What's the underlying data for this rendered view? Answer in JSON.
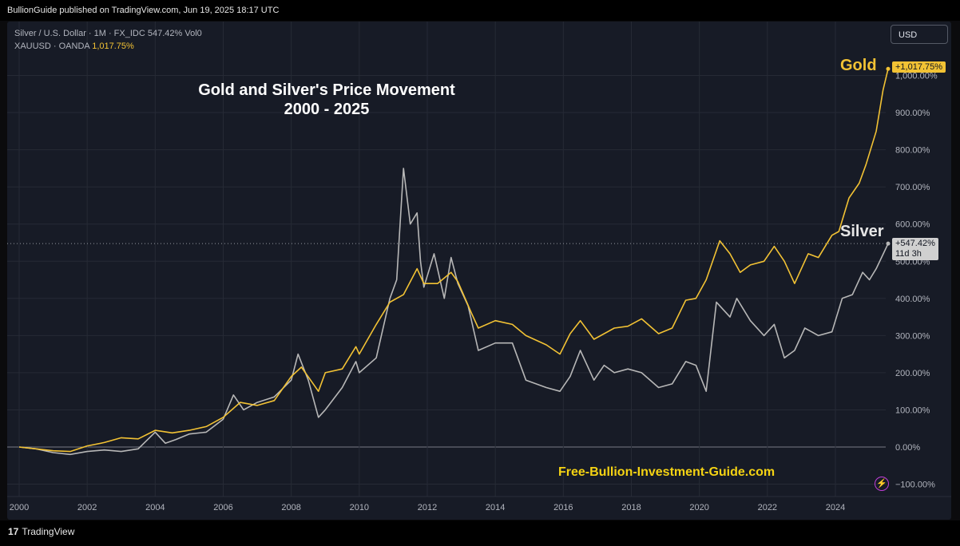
{
  "header": {
    "published": "BullionGuide published on TradingView.com, Jun 19, 2025 18:17 UTC"
  },
  "legend": {
    "silver_line": "Silver / U.S. Dollar · 1M · FX_IDC  547.42%  Vol0",
    "gold_name": "XAUUSD · OANDA",
    "gold_value": "1,017.75%"
  },
  "currency_button": "USD",
  "footer": {
    "brand": "TradingView",
    "brand_icon": "tradingview-logo-icon"
  },
  "annotations": {
    "gold_label": "Gold",
    "silver_label": "Silver",
    "website": "Free-Bullion-Investment-Guide.com",
    "gold_badge": "+1,017.75%",
    "silver_badge_value": "+547.42%",
    "silver_badge_time": "11d 3h",
    "corner_icon": "lightning-icon"
  },
  "colors": {
    "gold": "#f2c234",
    "silver": "#b7b7b7",
    "background": "#171b26",
    "grid": "#262a35"
  },
  "chart_data": {
    "type": "line",
    "title": "Gold and Silver's Price Movement\n2000 - 2025",
    "xlabel": "",
    "ylabel": "",
    "x_ticks": [
      "2000",
      "2002",
      "2004",
      "2006",
      "2008",
      "2010",
      "2012",
      "2014",
      "2016",
      "2018",
      "2020",
      "2022",
      "2024"
    ],
    "y_ticks": [
      "−100.00%",
      "0.00%",
      "100.00%",
      "200.00%",
      "300.00%",
      "400.00%",
      "500.00%",
      "600.00%",
      "700.00%",
      "800.00%",
      "900.00%",
      "1,000.00%"
    ],
    "ylim": [
      -115,
      1070
    ],
    "xlim": [
      1999.7,
      2025.7
    ],
    "grid": true,
    "series": [
      {
        "name": "Gold",
        "color": "#f2c234",
        "points": [
          [
            2000,
            0
          ],
          [
            2000.5,
            -5
          ],
          [
            2001,
            -10
          ],
          [
            2001.5,
            -12
          ],
          [
            2002,
            3
          ],
          [
            2002.5,
            12
          ],
          [
            2003,
            25
          ],
          [
            2003.5,
            22
          ],
          [
            2004,
            45
          ],
          [
            2004.5,
            38
          ],
          [
            2005,
            45
          ],
          [
            2005.5,
            55
          ],
          [
            2006,
            80
          ],
          [
            2006.5,
            120
          ],
          [
            2007,
            112
          ],
          [
            2007.5,
            125
          ],
          [
            2008,
            190
          ],
          [
            2008.3,
            215
          ],
          [
            2008.8,
            150
          ],
          [
            2009,
            200
          ],
          [
            2009.5,
            210
          ],
          [
            2009.9,
            270
          ],
          [
            2010,
            250
          ],
          [
            2010.5,
            330
          ],
          [
            2010.9,
            390
          ],
          [
            2011.3,
            410
          ],
          [
            2011.7,
            480
          ],
          [
            2011.9,
            440
          ],
          [
            2012.3,
            440
          ],
          [
            2012.7,
            470
          ],
          [
            2012.9,
            445
          ],
          [
            2013.3,
            360
          ],
          [
            2013.5,
            320
          ],
          [
            2014,
            340
          ],
          [
            2014.5,
            330
          ],
          [
            2014.9,
            300
          ],
          [
            2015.5,
            275
          ],
          [
            2015.9,
            250
          ],
          [
            2016.2,
            305
          ],
          [
            2016.5,
            340
          ],
          [
            2016.9,
            290
          ],
          [
            2017.5,
            320
          ],
          [
            2017.9,
            325
          ],
          [
            2018.3,
            345
          ],
          [
            2018.8,
            305
          ],
          [
            2019.2,
            320
          ],
          [
            2019.6,
            395
          ],
          [
            2019.9,
            400
          ],
          [
            2020.2,
            450
          ],
          [
            2020.6,
            555
          ],
          [
            2020.9,
            520
          ],
          [
            2021.2,
            470
          ],
          [
            2021.5,
            490
          ],
          [
            2021.9,
            500
          ],
          [
            2022.2,
            540
          ],
          [
            2022.5,
            500
          ],
          [
            2022.8,
            440
          ],
          [
            2023.2,
            520
          ],
          [
            2023.5,
            510
          ],
          [
            2023.9,
            570
          ],
          [
            2024.1,
            580
          ],
          [
            2024.4,
            670
          ],
          [
            2024.7,
            710
          ],
          [
            2024.9,
            760
          ],
          [
            2025.2,
            850
          ],
          [
            2025.4,
            960
          ],
          [
            2025.55,
            1017.75
          ]
        ]
      },
      {
        "name": "Silver",
        "color": "#b7b7b7",
        "points": [
          [
            2000,
            0
          ],
          [
            2000.5,
            -5
          ],
          [
            2001,
            -15
          ],
          [
            2001.5,
            -20
          ],
          [
            2002,
            -12
          ],
          [
            2002.5,
            -8
          ],
          [
            2003,
            -12
          ],
          [
            2003.5,
            -5
          ],
          [
            2004,
            40
          ],
          [
            2004.3,
            10
          ],
          [
            2004.6,
            20
          ],
          [
            2005,
            35
          ],
          [
            2005.5,
            40
          ],
          [
            2006,
            75
          ],
          [
            2006.3,
            140
          ],
          [
            2006.6,
            100
          ],
          [
            2007,
            120
          ],
          [
            2007.5,
            135
          ],
          [
            2008,
            180
          ],
          [
            2008.2,
            250
          ],
          [
            2008.5,
            180
          ],
          [
            2008.8,
            80
          ],
          [
            2009,
            100
          ],
          [
            2009.5,
            160
          ],
          [
            2009.9,
            230
          ],
          [
            2010,
            200
          ],
          [
            2010.5,
            240
          ],
          [
            2010.9,
            400
          ],
          [
            2011.1,
            450
          ],
          [
            2011.3,
            750
          ],
          [
            2011.5,
            600
          ],
          [
            2011.7,
            630
          ],
          [
            2011.8,
            500
          ],
          [
            2011.9,
            430
          ],
          [
            2012.2,
            520
          ],
          [
            2012.5,
            400
          ],
          [
            2012.7,
            510
          ],
          [
            2012.9,
            440
          ],
          [
            2013.2,
            380
          ],
          [
            2013.5,
            260
          ],
          [
            2014,
            280
          ],
          [
            2014.5,
            280
          ],
          [
            2014.9,
            180
          ],
          [
            2015.5,
            160
          ],
          [
            2015.9,
            150
          ],
          [
            2016.2,
            190
          ],
          [
            2016.5,
            260
          ],
          [
            2016.9,
            180
          ],
          [
            2017.2,
            220
          ],
          [
            2017.5,
            200
          ],
          [
            2017.9,
            210
          ],
          [
            2018.3,
            200
          ],
          [
            2018.8,
            160
          ],
          [
            2019.2,
            170
          ],
          [
            2019.6,
            230
          ],
          [
            2019.9,
            220
          ],
          [
            2020.2,
            150
          ],
          [
            2020.5,
            390
          ],
          [
            2020.7,
            370
          ],
          [
            2020.9,
            350
          ],
          [
            2021.1,
            400
          ],
          [
            2021.5,
            340
          ],
          [
            2021.9,
            300
          ],
          [
            2022.2,
            330
          ],
          [
            2022.5,
            240
          ],
          [
            2022.8,
            260
          ],
          [
            2023.1,
            320
          ],
          [
            2023.5,
            300
          ],
          [
            2023.9,
            310
          ],
          [
            2024.2,
            400
          ],
          [
            2024.5,
            410
          ],
          [
            2024.8,
            470
          ],
          [
            2025,
            450
          ],
          [
            2025.2,
            480
          ],
          [
            2025.55,
            547.42
          ]
        ]
      }
    ],
    "reference_line": 547.42
  }
}
